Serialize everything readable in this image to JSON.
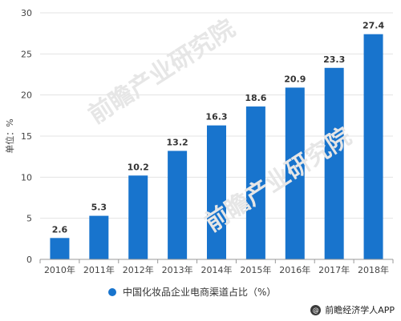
{
  "chart_data": {
    "type": "bar",
    "categories": [
      "2010年",
      "2011年",
      "2012年",
      "2013年",
      "2014年",
      "2015年",
      "2016年",
      "2017年",
      "2018年"
    ],
    "series": [
      {
        "name": "中国化妆品企业电商渠道占比（%）",
        "values": [
          2.6,
          5.3,
          10.2,
          13.2,
          16.3,
          18.6,
          20.9,
          23.3,
          27.4
        ]
      }
    ],
    "data_labels": [
      "2.6",
      "5.3",
      "10.2",
      "13.2",
      "16.3",
      "18.6",
      "20.9",
      "23.3",
      "27.4"
    ],
    "ylabel": "单位：%",
    "xlabel": "",
    "ylim": [
      0,
      30
    ],
    "yticks": [
      0,
      5,
      10,
      15,
      20,
      25,
      30
    ],
    "grid": "horizontal",
    "legend_position": "bottom",
    "bar_color": "#1874cd"
  },
  "legend": {
    "label": "中国化妆品企业电商渠道占比（%）"
  },
  "source": {
    "label": "前瞻经济学人APP"
  },
  "watermark": {
    "text": "前瞻产业研究院"
  }
}
